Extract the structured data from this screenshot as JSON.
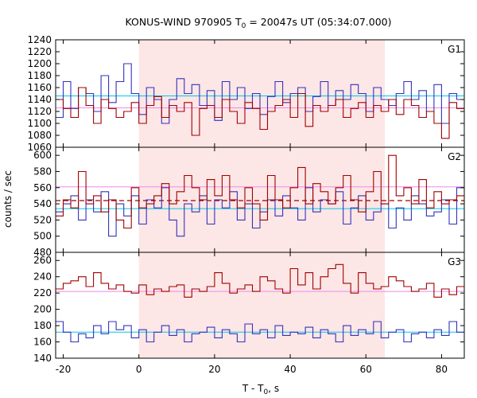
{
  "chart_data": {
    "type": "line",
    "title": "KONUS-WIND 970905 T",
    "title_sub": "0",
    "title_rest": " = 20047s UT (05:34:07.000)",
    "xlabel": "T - T",
    "xlabel_sub": "0",
    "xlabel_rest": ", s",
    "ylabel": "counts / sec",
    "xlim": [
      -22,
      86
    ],
    "xticks": [
      -20,
      0,
      20,
      40,
      60,
      80
    ],
    "shaded_interval": [
      0,
      65
    ],
    "bin_width": 2,
    "bin_start": -22,
    "colors": {
      "shade": "#fde6e6",
      "blue": "#3333bb",
      "red": "#a00000",
      "cyan_level": "#00c8e8",
      "pink_level": "#ee88ee",
      "red_dashed": "#a00000"
    },
    "panels": [
      {
        "label": "G1",
        "ylim": [
          1060,
          1240
        ],
        "yticks": [
          1060,
          1080,
          1100,
          1120,
          1140,
          1160,
          1180,
          1200,
          1220,
          1240
        ],
        "levels": [
          {
            "series": "blue",
            "value": 1146,
            "color": "cyan_level",
            "dash": false
          },
          {
            "series": "red",
            "value": 1126,
            "color": "pink_level",
            "dash": false
          }
        ],
        "series": [
          {
            "color": "blue",
            "values": [
              1110,
              1170,
              1125,
              1160,
              1150,
              1120,
              1180,
              1135,
              1170,
              1200,
              1150,
              1115,
              1160,
              1140,
              1100,
              1140,
              1175,
              1150,
              1165,
              1130,
              1155,
              1105,
              1170,
              1140,
              1160,
              1125,
              1150,
              1115,
              1145,
              1170,
              1135,
              1150,
              1160,
              1120,
              1145,
              1170,
              1130,
              1155,
              1140,
              1165,
              1150,
              1120,
              1160,
              1140,
              1130,
              1150,
              1170,
              1140,
              1155,
              1120,
              1165,
              1100,
              1150,
              1140,
              1130,
              1155
            ]
          },
          {
            "color": "red",
            "values": [
              1140,
              1125,
              1110,
              1160,
              1130,
              1100,
              1140,
              1125,
              1110,
              1120,
              1135,
              1100,
              1130,
              1145,
              1110,
              1130,
              1120,
              1135,
              1080,
              1125,
              1130,
              1110,
              1140,
              1120,
              1100,
              1135,
              1125,
              1090,
              1120,
              1130,
              1140,
              1110,
              1150,
              1095,
              1130,
              1120,
              1130,
              1140,
              1110,
              1125,
              1135,
              1110,
              1130,
              1120,
              1140,
              1115,
              1140,
              1130,
              1110,
              1120,
              1100,
              1075,
              1135,
              1125,
              1100,
              1130
            ]
          }
        ]
      },
      {
        "label": "G2",
        "ylim": [
          480,
          610
        ],
        "yticks": [
          480,
          500,
          520,
          540,
          560,
          580,
          600
        ],
        "levels": [
          {
            "series": "blue",
            "value": 534,
            "color": "cyan_level",
            "dash": false
          },
          {
            "series": "red",
            "value": 561,
            "color": "pink_level",
            "dash": false
          },
          {
            "series": "red",
            "value": 544,
            "color": "red_dashed",
            "dash": true
          }
        ],
        "series": [
          {
            "color": "blue",
            "values": [
              530,
              540,
              550,
              520,
              545,
              530,
              555,
              500,
              540,
              525,
              550,
              515,
              545,
              535,
              560,
              520,
              500,
              540,
              530,
              550,
              515,
              545,
              535,
              555,
              520,
              540,
              510,
              530,
              545,
              525,
              550,
              535,
              520,
              560,
              530,
              545,
              540,
              555,
              515,
              535,
              550,
              520,
              530,
              540,
              510,
              535,
              520,
              550,
              540,
              525,
              530,
              545,
              515,
              560,
              540,
              520
            ]
          },
          {
            "color": "red",
            "values": [
              525,
              545,
              535,
              580,
              540,
              550,
              530,
              545,
              520,
              510,
              560,
              535,
              540,
              550,
              565,
              540,
              555,
              575,
              560,
              545,
              570,
              550,
              575,
              545,
              535,
              560,
              540,
              520,
              575,
              545,
              535,
              560,
              585,
              540,
              565,
              555,
              540,
              560,
              575,
              545,
              530,
              555,
              580,
              540,
              600,
              550,
              560,
              540,
              570,
              535,
              555,
              540,
              545,
              550,
              560,
              545
            ]
          }
        ]
      },
      {
        "label": "G3",
        "ylim": [
          140,
          270
        ],
        "yticks": [
          140,
          160,
          180,
          200,
          220,
          240,
          260
        ],
        "levels": [
          {
            "series": "blue",
            "value": 172,
            "color": "cyan_level",
            "dash": false
          },
          {
            "series": "red",
            "value": 222,
            "color": "pink_level",
            "dash": false
          }
        ],
        "series": [
          {
            "color": "blue",
            "values": [
              185,
              172,
              160,
              170,
              165,
              180,
              170,
              185,
              175,
              180,
              165,
              175,
              160,
              172,
              180,
              168,
              175,
              160,
              170,
              172,
              178,
              165,
              175,
              170,
              160,
              182,
              170,
              175,
              165,
              180,
              168,
              172,
              170,
              178,
              165,
              175,
              170,
              160,
              180,
              168,
              175,
              170,
              185,
              165,
              172,
              175,
              160,
              170,
              172,
              165,
              175,
              168,
              185,
              172,
              160,
              170
            ]
          },
          {
            "color": "red",
            "values": [
              225,
              232,
              235,
              240,
              228,
              245,
              232,
              225,
              230,
              222,
              220,
              230,
              218,
              225,
              222,
              228,
              230,
              215,
              225,
              222,
              228,
              245,
              232,
              220,
              225,
              230,
              222,
              240,
              235,
              225,
              220,
              250,
              230,
              245,
              225,
              240,
              250,
              255,
              232,
              220,
              245,
              232,
              225,
              228,
              240,
              235,
              228,
              222,
              225,
              232,
              215,
              225,
              218,
              228,
              222,
              230
            ]
          }
        ]
      }
    ]
  }
}
